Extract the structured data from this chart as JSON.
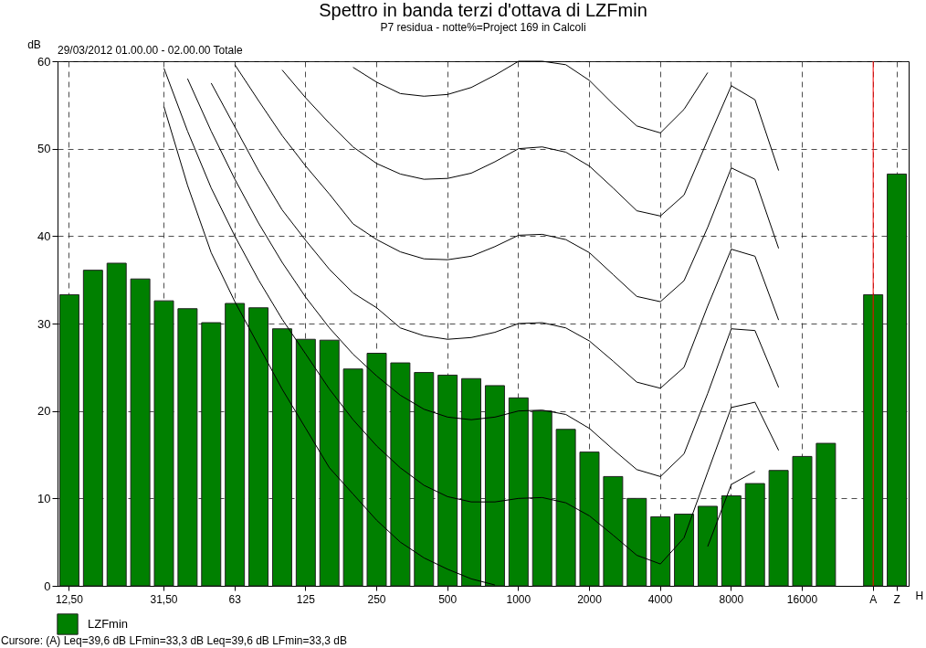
{
  "chart_data": {
    "type": "bar",
    "title": "Spettro in banda terzi d'ottava di LZFmin",
    "subtitle": "P7 residua - notte%=Project 169 in Calcoli",
    "xlabel": "H",
    "ylabel": "dB",
    "annotations": [
      "29/03/2012 01.00.00 - 02.00.00  Totale",
      "Cursore: (A)  Leq=39,6 dB  LFmin=33,3 dB  Leq=39,6 dB  LFmin=33,3 dB"
    ],
    "categories": [
      "12,50",
      null,
      null,
      null,
      "31,50",
      null,
      null,
      "63",
      null,
      null,
      "125",
      null,
      null,
      "250",
      null,
      null,
      "500",
      null,
      null,
      "1000",
      null,
      null,
      "2000",
      null,
      null,
      "4000",
      null,
      null,
      "8000",
      null,
      null,
      "16000",
      null,
      null,
      "A",
      "Z"
    ],
    "ylim": [
      0,
      60
    ],
    "yticks": [
      0,
      10,
      20,
      30,
      40,
      50,
      60
    ],
    "grid": true,
    "legend": "bottom left",
    "ref_lines": [
      {
        "axis": "x",
        "value": "A",
        "color": "#ff0000"
      }
    ],
    "series": [
      {
        "name": "LZFmin",
        "color": "#008000",
        "values": [
          33.3,
          36.1,
          36.9,
          35.1,
          32.6,
          31.7,
          30.1,
          32.3,
          31.8,
          29.4,
          28.2,
          28.1,
          24.8,
          26.6,
          25.5,
          24.4,
          24.1,
          23.7,
          22.9,
          21.5,
          20.0,
          17.9,
          15.3,
          12.5,
          10.0,
          7.9,
          8.2,
          9.1,
          10.3,
          11.7,
          13.2,
          14.8,
          16.3,
          null,
          33.3,
          47.1
        ]
      },
      {
        "type": "line",
        "color": "#000000",
        "values": [
          null,
          null,
          null,
          null,
          54.8,
          45.8,
          38.1,
          32.5,
          27.5,
          22.5,
          18.0,
          13.5,
          10.5,
          7.5,
          5.0,
          3.2,
          1.9,
          0.8,
          0.1,
          null,
          null,
          null,
          null,
          null,
          null,
          null,
          null,
          4.5,
          11.6,
          13.1,
          null,
          null,
          null,
          null,
          null,
          null
        ]
      },
      {
        "type": "line",
        "color": "#000000",
        "values": [
          null,
          null,
          null,
          null,
          59.2,
          52.0,
          45.5,
          40.0,
          35.0,
          30.5,
          26.5,
          22.5,
          19.0,
          16.0,
          13.5,
          11.5,
          10.2,
          9.6,
          9.6,
          10.0,
          10.1,
          9.5,
          8.0,
          5.8,
          3.5,
          2.5,
          5.5,
          13.0,
          20.4,
          21.0,
          15.5,
          null,
          null,
          null,
          null,
          null
        ]
      },
      {
        "type": "line",
        "color": "#000000",
        "values": [
          null,
          null,
          null,
          null,
          null,
          58.0,
          52.0,
          46.5,
          41.5,
          37.0,
          33.0,
          29.5,
          26.5,
          24.0,
          21.8,
          20.2,
          19.3,
          19.0,
          19.3,
          20.0,
          20.1,
          19.6,
          18.0,
          15.6,
          13.3,
          12.5,
          15.1,
          22.0,
          29.4,
          29.2,
          22.7,
          null,
          null,
          null,
          null,
          null
        ]
      },
      {
        "type": "line",
        "color": "#000000",
        "values": [
          null,
          null,
          null,
          null,
          null,
          null,
          57.5,
          52.5,
          47.5,
          43.0,
          39.5,
          36.2,
          33.5,
          31.8,
          29.5,
          28.6,
          28.2,
          28.4,
          29.0,
          30.0,
          30.1,
          29.5,
          28.0,
          25.7,
          23.3,
          22.6,
          25.0,
          32.0,
          38.5,
          37.7,
          30.4,
          null,
          null,
          null,
          null,
          null
        ]
      },
      {
        "type": "line",
        "color": "#000000",
        "values": [
          null,
          null,
          null,
          null,
          null,
          null,
          null,
          59.6,
          55.5,
          51.5,
          48.0,
          44.8,
          41.4,
          39.6,
          38.2,
          37.4,
          37.3,
          37.7,
          38.8,
          40.1,
          40.2,
          39.6,
          38.1,
          35.6,
          33.1,
          32.5,
          34.9,
          41.0,
          47.8,
          46.5,
          38.6,
          null,
          null,
          null,
          null,
          null
        ]
      },
      {
        "type": "line",
        "color": "#000000",
        "values": [
          null,
          null,
          null,
          null,
          null,
          null,
          null,
          null,
          null,
          59.0,
          55.8,
          52.9,
          50.2,
          48.3,
          47.1,
          46.5,
          46.6,
          47.2,
          48.5,
          50.0,
          50.2,
          49.6,
          48.0,
          45.5,
          42.9,
          42.3,
          44.7,
          51.0,
          57.2,
          55.6,
          47.5,
          null,
          null,
          null,
          null,
          null
        ]
      },
      {
        "type": "line",
        "color": "#000000",
        "values": [
          null,
          null,
          null,
          null,
          null,
          null,
          null,
          null,
          null,
          null,
          null,
          null,
          59.3,
          57.6,
          56.3,
          56.0,
          56.2,
          57.0,
          58.4,
          60,
          60,
          59.6,
          57.8,
          55.1,
          52.6,
          51.8,
          54.5,
          58.7,
          null,
          null,
          null,
          null,
          null,
          null,
          null,
          null
        ]
      }
    ]
  }
}
